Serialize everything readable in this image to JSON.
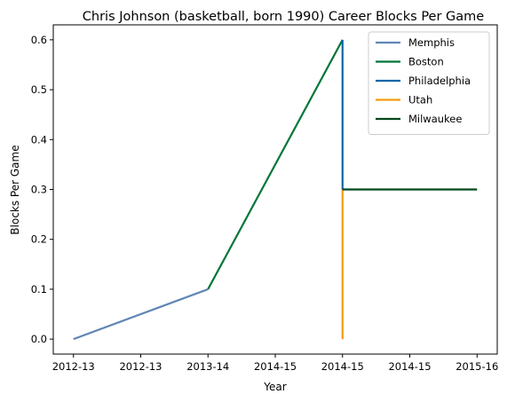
{
  "chart_data": {
    "type": "line",
    "title": "Chris Johnson (basketball, born 1990) Career Blocks Per Game",
    "xlabel": "Year",
    "ylabel": "Blocks Per Game",
    "x_tick_labels": [
      "2012-13",
      "2012-13",
      "2013-14",
      "2014-15",
      "2014-15",
      "2014-15",
      "2015-16"
    ],
    "y_ticks": [
      0.0,
      0.1,
      0.2,
      0.3,
      0.4,
      0.5,
      0.6
    ],
    "y_tick_labels": [
      "0.0",
      "0.1",
      "0.2",
      "0.3",
      "0.4",
      "0.5",
      "0.6"
    ],
    "x_range": [
      2012.85,
      2016.15
    ],
    "ylim": [
      -0.03,
      0.63
    ],
    "grid": false,
    "legend_position": "top-right",
    "series": [
      {
        "name": "Memphis",
        "color": "#5f87b5",
        "x": [
          2013,
          2014
        ],
        "y": [
          0.0,
          0.1
        ]
      },
      {
        "name": "Boston",
        "color": "#00763a",
        "x": [
          2014,
          2015
        ],
        "y": [
          0.1,
          0.6
        ]
      },
      {
        "name": "Philadelphia",
        "color": "#0a66a8",
        "x": [
          2015,
          2015
        ],
        "y": [
          0.6,
          0.3
        ]
      },
      {
        "name": "Utah",
        "color": "#f39c12",
        "x": [
          2015,
          2015
        ],
        "y": [
          0.0,
          0.3
        ]
      },
      {
        "name": "Milwaukee",
        "color": "#00471b",
        "x": [
          2015,
          2016
        ],
        "y": [
          0.3,
          0.3
        ]
      }
    ]
  }
}
